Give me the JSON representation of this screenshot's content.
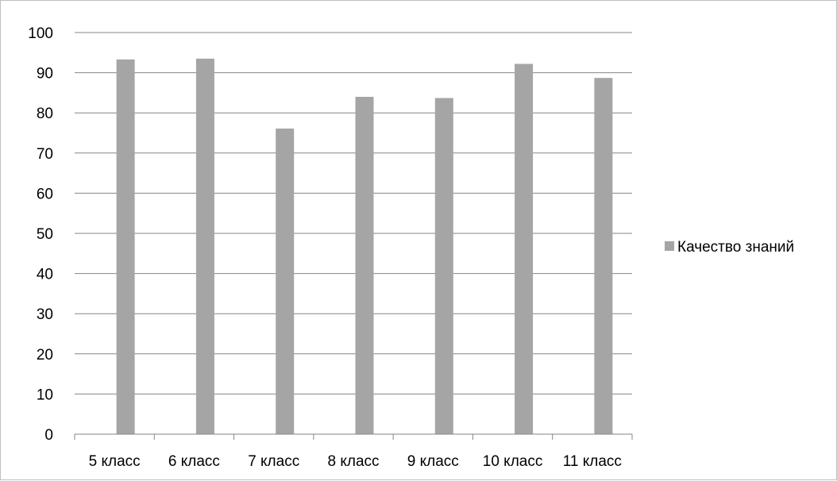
{
  "chart_data": {
    "type": "bar",
    "title": "",
    "xlabel": "",
    "ylabel": "",
    "categories": [
      "5 класс",
      "6 класс",
      "7 класс",
      "8 класс",
      "9 класс",
      "10 класс",
      "11 класс"
    ],
    "series": [
      {
        "name": "Качество знаний",
        "values": [
          93.3,
          93.5,
          76.1,
          84.0,
          83.7,
          92.2,
          88.7
        ],
        "color": "#a5a5a5"
      }
    ],
    "ylim": [
      0,
      100
    ],
    "yticks": [
      "0",
      "10",
      "20",
      "30",
      "40",
      "50",
      "60",
      "70",
      "80",
      "90",
      "100"
    ],
    "grid": true,
    "legend_position": "right"
  }
}
